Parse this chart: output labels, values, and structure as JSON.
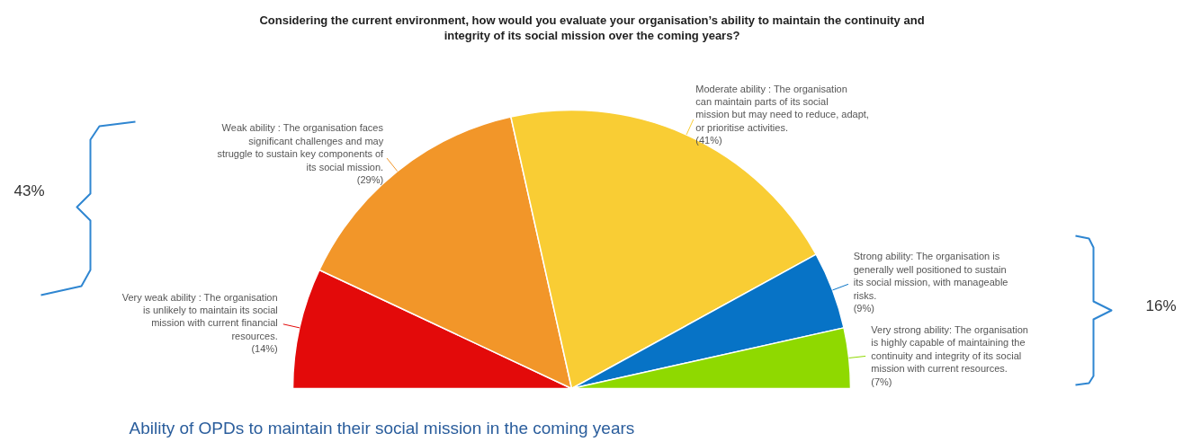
{
  "chart_data": {
    "type": "pie",
    "title": "Considering the current environment, how would you evaluate your organisation’s ability to maintain the continuity and integrity of its social mission over the coming years?",
    "categories": [
      "Very weak ability : The organisation is unlikely to maintain its social mission with current financial resources.",
      "Weak ability : The organisation faces significant challenges and may struggle to sustain key components of its social mission.",
      "Moderate ability : The organisation can maintain parts of its social mission but may need to reduce, adapt, or prioritise activities.",
      "Strong ability: The organisation is generally well positioned to sustain its social mission, with manageable risks.",
      "Very strong ability: The organisation is highly capable of maintaining the continuity and integrity of its social mission with current resources."
    ],
    "values": [
      14,
      29,
      41,
      9,
      7
    ],
    "value_labels": [
      "(14%)",
      "(29%)",
      "(41%)",
      "(9%)",
      "(7%)"
    ],
    "colors": [
      "#e30a0a",
      "#f29629",
      "#f9cd34",
      "#0773c6",
      "#8fd900"
    ],
    "annotations": [
      "43%",
      "16%",
      "Ability of OPDs to maintain their social mission in the coming years"
    ]
  }
}
